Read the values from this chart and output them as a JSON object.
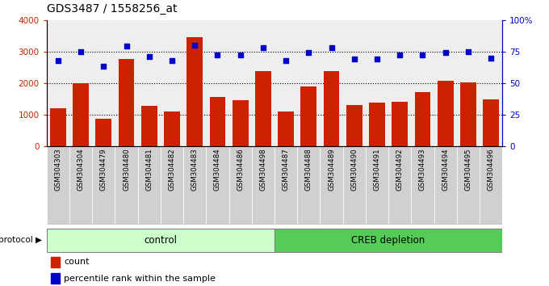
{
  "title": "GDS3487 / 1558256_at",
  "samples": [
    "GSM304303",
    "GSM304304",
    "GSM304479",
    "GSM304480",
    "GSM304481",
    "GSM304482",
    "GSM304483",
    "GSM304484",
    "GSM304486",
    "GSM304498",
    "GSM304487",
    "GSM304488",
    "GSM304489",
    "GSM304490",
    "GSM304491",
    "GSM304492",
    "GSM304493",
    "GSM304494",
    "GSM304495",
    "GSM304496"
  ],
  "counts": [
    1200,
    2000,
    850,
    2750,
    1270,
    1100,
    3450,
    1560,
    1440,
    2380,
    1100,
    1900,
    2380,
    1290,
    1370,
    1390,
    1700,
    2080,
    2020,
    1480
  ],
  "percentile_ranks": [
    68,
    75,
    63,
    79,
    71,
    68,
    80,
    72,
    72,
    78,
    68,
    74,
    78,
    69,
    69,
    72,
    72,
    74,
    75,
    70
  ],
  "bar_color": "#cc2200",
  "dot_color": "#0000cc",
  "n_control": 10,
  "n_creb": 10,
  "control_label": "control",
  "creb_label": "CREB depletion",
  "protocol_label": "protocol",
  "legend_count": "count",
  "legend_pct": "percentile rank within the sample",
  "ylim_left": [
    0,
    4000
  ],
  "ylim_right": [
    0,
    100
  ],
  "yticks_left": [
    0,
    1000,
    2000,
    3000,
    4000
  ],
  "yticks_right": [
    0,
    25,
    50,
    75,
    100
  ],
  "control_color": "#ccffcc",
  "creb_color": "#55cc55",
  "col_bg_color": "#d0d0d0",
  "grid_color": "black",
  "title_fontsize": 10
}
